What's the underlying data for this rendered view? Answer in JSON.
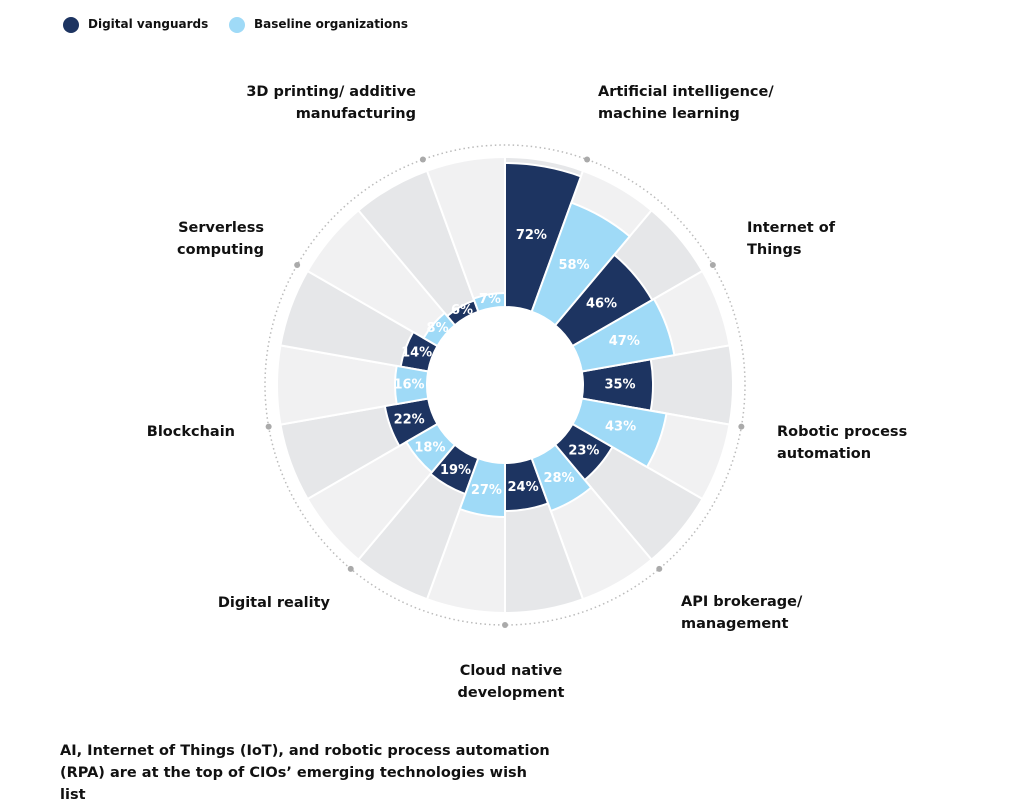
{
  "chart_data": {
    "type": "radial-bar",
    "caption": "AI, Internet of Things (IoT), and robotic process automation (RPA) are at the top of CIOs’ emerging technologies wish list",
    "categories": [
      "Artificial intelligence/ machine learning",
      "Internet of Things",
      "Robotic process automation",
      "API brokerage/ management",
      "Cloud native development",
      "Digital reality",
      "Blockchain",
      "Serverless computing",
      "3D printing/ additive manufacturing"
    ],
    "series": [
      {
        "name": "Digital vanguards",
        "color": "#1d3461",
        "values": [
          72,
          46,
          35,
          23,
          24,
          19,
          22,
          14,
          6
        ],
        "value_labels": [
          "72%",
          "46%",
          "35%",
          "23%",
          "24%",
          "19%",
          "22%",
          "14%",
          "6%"
        ]
      },
      {
        "name": "Baseline organizations",
        "color": "#9fdaf7",
        "values": [
          58,
          47,
          43,
          28,
          27,
          18,
          16,
          8,
          7
        ],
        "value_labels": [
          "58%",
          "47%",
          "43%",
          "28%",
          "27%",
          "18%",
          "16%",
          "8%",
          "7%"
        ]
      }
    ]
  }
}
